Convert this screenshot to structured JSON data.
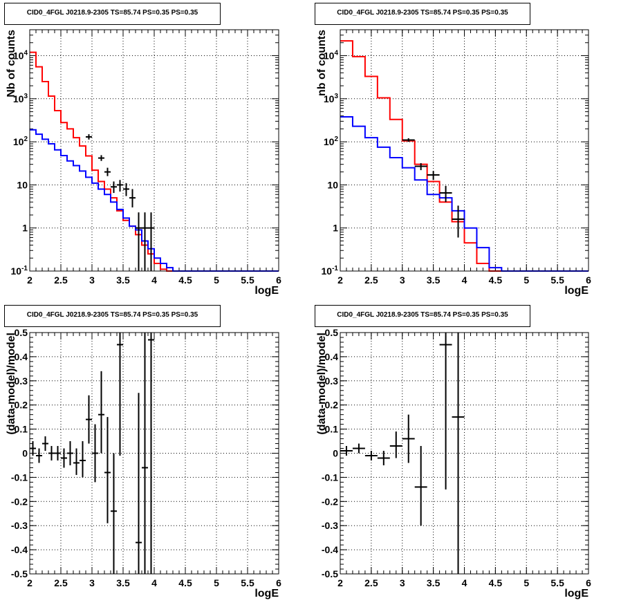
{
  "chart_data": [
    {
      "type": "step",
      "title": "CID0_4FGL J0218.9-2305 TS=85.74 PS=0.35 PS=0.35",
      "xlabel": "logE",
      "ylabel": "Nb of counts",
      "xlim": [
        2,
        6
      ],
      "ylim": [
        0.1,
        40000
      ],
      "log_y": true,
      "grid": true,
      "x_ticks": [
        "2",
        "2.5",
        "3",
        "3.5",
        "4",
        "4.5",
        "5",
        "5.5",
        "6"
      ],
      "y_ticks": [
        "10^-1",
        "1",
        "10",
        "10^2",
        "10^3",
        "10^4"
      ],
      "series": [
        {
          "color": "#ff0000",
          "bin_edges": [
            2,
            2.1,
            2.2,
            2.3,
            2.4,
            2.5,
            2.6,
            2.7,
            2.8,
            2.9,
            3,
            3.1,
            3.2,
            3.3,
            3.4,
            3.5,
            3.6,
            3.7,
            3.8,
            3.9,
            4,
            4.1,
            4.2,
            4.3,
            4.4,
            4.5,
            4.6,
            4.7,
            4.8,
            4.9,
            5,
            5.1,
            5.2,
            5.3,
            5.4,
            5.5,
            5.6,
            5.7,
            5.8,
            5.9,
            6
          ],
          "values": [
            12000,
            5500,
            2500,
            1150,
            530,
            280,
            200,
            125,
            80,
            47,
            22,
            12,
            8,
            5,
            2.5,
            1.5,
            1.1,
            0.7,
            0.4,
            0.25,
            0.15,
            0.11,
            0.1,
            0.1,
            0.1,
            0.1,
            0.1,
            0.1,
            0.1,
            0.1,
            0.1,
            0.1,
            0.1,
            0.1,
            0.1,
            0.1,
            0.1,
            0.1,
            0.1,
            0.1
          ]
        },
        {
          "color": "#0000ff",
          "bin_edges": [
            2,
            2.1,
            2.2,
            2.3,
            2.4,
            2.5,
            2.6,
            2.7,
            2.8,
            2.9,
            3,
            3.1,
            3.2,
            3.3,
            3.4,
            3.5,
            3.6,
            3.7,
            3.8,
            3.9,
            4,
            4.1,
            4.2,
            4.3,
            4.4,
            4.5,
            4.6,
            4.7,
            4.8,
            4.9,
            5,
            5.1,
            5.2,
            5.3,
            5.4,
            5.5,
            5.6,
            5.7,
            5.8,
            5.9,
            6
          ],
          "values": [
            190,
            150,
            115,
            90,
            65,
            48,
            36,
            28,
            21,
            15,
            11,
            8,
            6,
            4,
            2.7,
            1.7,
            1.1,
            0.9,
            0.5,
            0.33,
            0.2,
            0.15,
            0.12,
            0.1,
            0.1,
            0.1,
            0.1,
            0.1,
            0.1,
            0.1,
            0.1,
            0.1,
            0.1,
            0.1,
            0.1,
            0.1,
            0.1,
            0.1,
            0.1,
            0.1
          ]
        }
      ],
      "points": {
        "color": "#000000",
        "x": [
          2.95,
          3.15,
          3.25,
          3.35,
          3.45,
          3.55,
          3.65,
          3.75,
          3.85,
          3.95
        ],
        "y": [
          130,
          42,
          20,
          9,
          10,
          8,
          5,
          1,
          1,
          1
        ],
        "xerr": 0.05,
        "ylow": [
          113,
          36,
          16,
          6.5,
          7,
          5.5,
          3,
          0.1,
          0.1,
          0.1
        ],
        "yhigh": [
          150,
          49,
          25,
          12,
          13,
          11,
          8,
          2.3,
          2.3,
          2.3
        ]
      }
    },
    {
      "type": "step",
      "title": "CID0_4FGL J0218.9-2305 TS=85.74 PS=0.35 PS=0.35",
      "xlabel": "logE",
      "ylabel": "nb of counts",
      "xlim": [
        2,
        6
      ],
      "ylim": [
        0.1,
        40000
      ],
      "log_y": true,
      "grid": true,
      "x_ticks": [
        "2",
        "2.5",
        "3",
        "3.5",
        "4",
        "4.5",
        "5",
        "5.5",
        "6"
      ],
      "y_ticks": [
        "10^-1",
        "1",
        "10",
        "10^2",
        "10^3",
        "10^4"
      ],
      "series": [
        {
          "color": "#ff0000",
          "bin_edges": [
            2,
            2.2,
            2.4,
            2.6,
            2.8,
            3,
            3.2,
            3.4,
            3.6,
            3.8,
            4,
            4.2,
            4.4,
            4.6,
            4.8,
            5,
            5.2,
            5.4,
            5.6,
            5.8,
            6
          ],
          "values": [
            22000,
            9500,
            3300,
            1050,
            330,
            105,
            30,
            12,
            4,
            1.4,
            0.45,
            0.15,
            0.1,
            0.1,
            0.1,
            0.1,
            0.1,
            0.1,
            0.1,
            0.1
          ]
        },
        {
          "color": "#0000ff",
          "bin_edges": [
            2,
            2.2,
            2.4,
            2.6,
            2.8,
            3,
            3.2,
            3.4,
            3.6,
            3.8,
            4,
            4.2,
            4.4,
            4.6,
            4.8,
            5,
            5.2,
            5.4,
            5.6,
            5.8,
            6
          ],
          "values": [
            380,
            230,
            125,
            75,
            43,
            25,
            13,
            6,
            5,
            2.5,
            1,
            0.35,
            0.12,
            0.1,
            0.1,
            0.1,
            0.1,
            0.1,
            0.1,
            0.1
          ]
        }
      ],
      "points": {
        "color": "#000000",
        "x": [
          3.1,
          3.3,
          3.5,
          3.7,
          3.9
        ],
        "y": [
          110,
          27,
          17,
          6.5,
          1.6
        ],
        "xerr": 0.1,
        "ylow": [
          100,
          22,
          13,
          4,
          0.6
        ],
        "yhigh": [
          121,
          32,
          21,
          9.5,
          3.3
        ]
      }
    },
    {
      "type": "scatter",
      "title": "CID0_4FGL J0218.9-2305 TS=85.74 PS=0.35 PS=0.35",
      "xlabel": "logE",
      "ylabel": "(data-model)/model",
      "xlim": [
        2,
        6
      ],
      "ylim": [
        -0.5,
        0.5
      ],
      "grid": true,
      "x_ticks": [
        "2",
        "2.5",
        "3",
        "3.5",
        "4",
        "4.5",
        "5",
        "5.5",
        "6"
      ],
      "y_ticks": [
        "-0.5",
        "-0.4",
        "-0.3",
        "-0.2",
        "-0.1",
        "0",
        "0.1",
        "0.2",
        "0.3",
        "0.4",
        "0.5"
      ],
      "points": {
        "color": "#000000",
        "x": [
          2.05,
          2.15,
          2.25,
          2.35,
          2.45,
          2.55,
          2.65,
          2.75,
          2.85,
          2.95,
          3.05,
          3.15,
          3.25,
          3.35,
          3.45,
          3.75,
          3.85,
          3.95
        ],
        "y": [
          0.02,
          -0.01,
          0.04,
          0.0,
          0.0,
          -0.02,
          0.0,
          -0.04,
          -0.03,
          0.14,
          0.0,
          0.16,
          -0.08,
          -0.24,
          0.45,
          -0.37,
          -0.06,
          0.47
        ],
        "xerr": 0.05,
        "ylow": [
          -0.01,
          -0.04,
          0.01,
          -0.03,
          -0.03,
          -0.06,
          -0.05,
          -0.09,
          -0.1,
          0.04,
          -0.12,
          0.0,
          -0.29,
          -0.5,
          -0.01,
          -0.5,
          -0.5,
          -0.5
        ],
        "yhigh": [
          0.05,
          0.02,
          0.07,
          0.03,
          0.03,
          0.02,
          0.05,
          0.02,
          0.05,
          0.24,
          0.12,
          0.34,
          0.15,
          0.0,
          0.5,
          0.25,
          0.5,
          0.5
        ]
      }
    },
    {
      "type": "scatter",
      "title": "CID0_4FGL J0218.9-2305 TS=85.74 PS=0.35 PS=0.35",
      "xlabel": "logE",
      "ylabel": "(data-model)/model",
      "xlim": [
        2,
        6
      ],
      "ylim": [
        -0.5,
        0.5
      ],
      "grid": true,
      "x_ticks": [
        "2",
        "2.5",
        "3",
        "3.5",
        "4",
        "4.5",
        "5",
        "5.5",
        "6"
      ],
      "y_ticks": [
        "-0.5",
        "-0.4",
        "-0.3",
        "-0.2",
        "-0.1",
        "0",
        "0.1",
        "0.2",
        "0.3",
        "0.4",
        "0.5"
      ],
      "points": {
        "color": "#000000",
        "x": [
          2.1,
          2.3,
          2.5,
          2.7,
          2.9,
          3.1,
          3.3,
          3.7,
          3.9
        ],
        "y": [
          0.01,
          0.02,
          -0.01,
          -0.02,
          0.03,
          0.06,
          -0.14,
          0.45,
          0.15
        ],
        "xerr": 0.1,
        "ylow": [
          -0.01,
          0.0,
          -0.03,
          -0.05,
          -0.02,
          -0.04,
          -0.3,
          -0.15,
          -0.5
        ],
        "yhigh": [
          0.03,
          0.04,
          0.01,
          0.01,
          0.09,
          0.16,
          0.03,
          0.5,
          0.5
        ]
      }
    }
  ]
}
